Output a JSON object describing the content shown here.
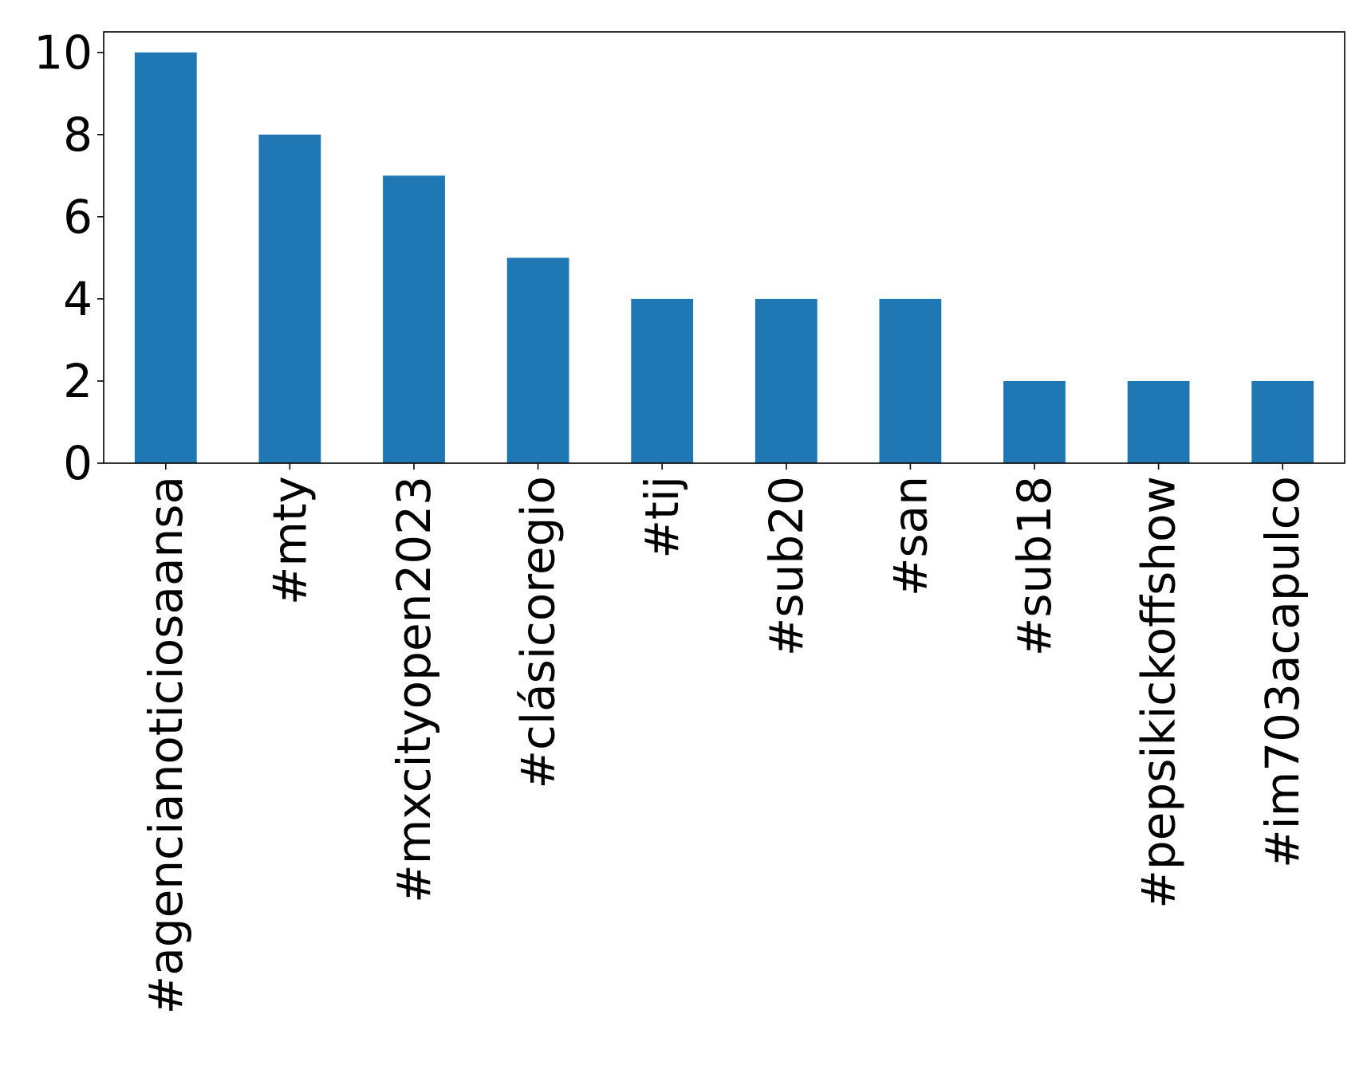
{
  "chart_data": {
    "type": "bar",
    "title": "",
    "xlabel": "",
    "ylabel": "",
    "categories": [
      "#agencianoticiosaansa",
      "#mty",
      "#mxcityopen2023",
      "#clásicoregio",
      "#tij",
      "#sub20",
      "#san",
      "#sub18",
      "#pepsikickoffshow",
      "#im703acapulco"
    ],
    "values": [
      10,
      8,
      7,
      5,
      4,
      4,
      4,
      2,
      2,
      2
    ],
    "ylim": [
      0,
      10.5
    ],
    "yticks": [
      0,
      2,
      4,
      6,
      8,
      10
    ],
    "grid": false,
    "legend": "none",
    "bar_color": "#1f77b4"
  }
}
